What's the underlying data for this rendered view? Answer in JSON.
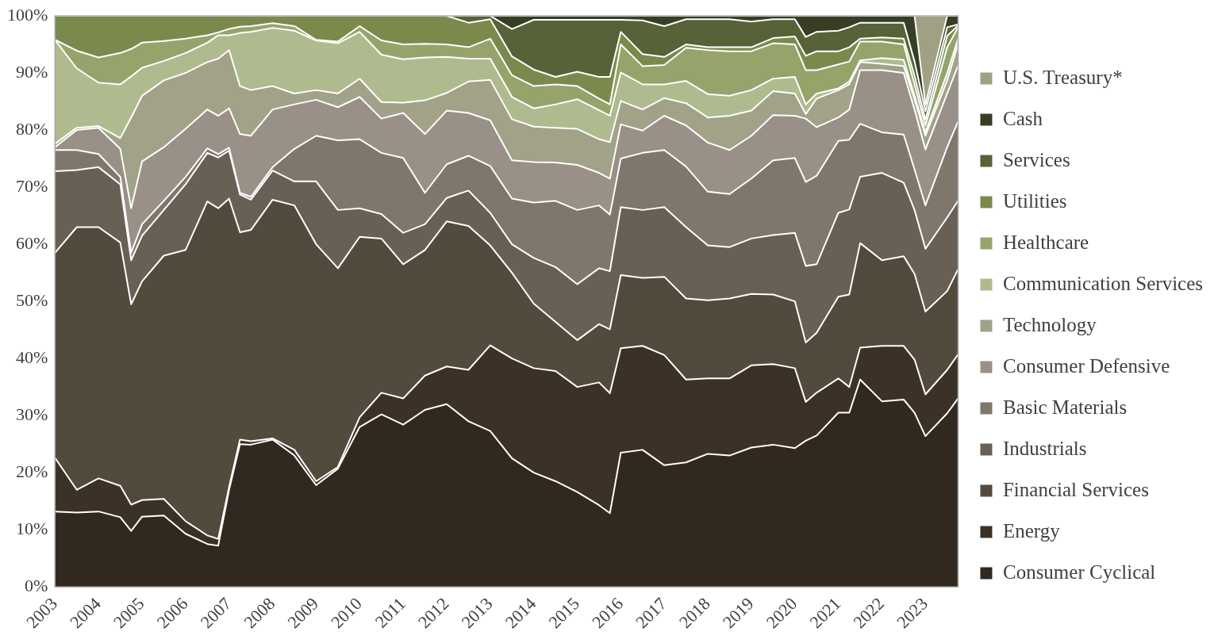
{
  "chart_data": {
    "type": "area",
    "stacked": true,
    "legend": "right",
    "grid": false,
    "x": [
      2003,
      2003.5,
      2004,
      2004.5,
      2004.75,
      2005,
      2005.5,
      2006,
      2006.5,
      2006.75,
      2007,
      2007.25,
      2007.5,
      2008,
      2008.5,
      2009,
      2009.5,
      2010,
      2010.5,
      2011,
      2011.5,
      2012,
      2012.5,
      2013,
      2013.5,
      2014,
      2014.5,
      2015,
      2015.5,
      2015.75,
      2016,
      2016.5,
      2017,
      2017.5,
      2018,
      2018.5,
      2019,
      2019.5,
      2020,
      2020.25,
      2020.5,
      2021,
      2021.25,
      2021.5,
      2022,
      2022.5,
      2022.75,
      2023,
      2023.5,
      2023.75
    ],
    "xlim": [
      2003,
      2023.75
    ],
    "xticks": [
      2003,
      2004,
      2005,
      2006,
      2007,
      2008,
      2009,
      2010,
      2011,
      2012,
      2013,
      2014,
      2015,
      2016,
      2017,
      2018,
      2019,
      2020,
      2021,
      2022,
      2023
    ],
    "ylim": [
      0,
      100
    ],
    "yticks": [
      {
        "value": 0,
        "label": "0%"
      },
      {
        "value": 10,
        "label": "10%"
      },
      {
        "value": 20,
        "label": "20%"
      },
      {
        "value": 30,
        "label": "30%"
      },
      {
        "value": 40,
        "label": "40%"
      },
      {
        "value": 50,
        "label": "50%"
      },
      {
        "value": 60,
        "label": "60%"
      },
      {
        "value": 70,
        "label": "70%"
      },
      {
        "value": 80,
        "label": "80%"
      },
      {
        "value": 90,
        "label": "90%"
      },
      {
        "value": 100,
        "label": "100%"
      }
    ],
    "series": [
      {
        "name": "Consumer Cyclical",
        "color": "#312820",
        "values": [
          13.2,
          13,
          13.2,
          12.2,
          9.8,
          12.3,
          12.5,
          9.3,
          7.5,
          7.2,
          17,
          25,
          24.9,
          25.8,
          23,
          17.8,
          20.7,
          28,
          30.2,
          28.4,
          31,
          32,
          29,
          27.3,
          22.5,
          20,
          18.5,
          16.6,
          14.3,
          12.9,
          23.5,
          24,
          21.3,
          21.8,
          23.3,
          23,
          24.4,
          24.9,
          24.3,
          25.6,
          26.5,
          30.5,
          30.5,
          36.3,
          32.5,
          32.8,
          30.5,
          26.4,
          30.4,
          33
        ]
      },
      {
        "name": "Energy",
        "color": "#3c3127",
        "values": [
          9.4,
          4,
          5.8,
          5.5,
          4.6,
          2.9,
          2.9,
          2.2,
          1.5,
          1.2,
          0.5,
          0.8,
          0.6,
          0.2,
          1,
          0.7,
          0.3,
          1.7,
          3.8,
          4.6,
          6,
          6.6,
          9,
          15,
          17.5,
          18.3,
          19.3,
          18.4,
          21.5,
          21,
          18.3,
          18.2,
          19.3,
          14.5,
          13.2,
          13.5,
          14.4,
          14.1,
          14,
          6.8,
          7.5,
          6,
          4.5,
          5.6,
          9.7,
          9.4,
          9.3,
          7.3,
          7.6,
          7.7
        ]
      },
      {
        "name": "Financial Services",
        "color": "#524a3c",
        "values": [
          35.9,
          46,
          44,
          42.6,
          35.1,
          38.3,
          42.6,
          47.5,
          58.5,
          57.9,
          50.5,
          36.3,
          37,
          41.8,
          42.8,
          41.5,
          34.8,
          31.6,
          27,
          23.5,
          22,
          25.4,
          25.2,
          17.5,
          15,
          11.3,
          8.6,
          8.2,
          10.2,
          11.2,
          12.8,
          11.9,
          13.7,
          14.2,
          13.7,
          14,
          12.5,
          12.2,
          11.7,
          10.4,
          10.5,
          14.3,
          16.2,
          18.3,
          15,
          15.7,
          15,
          14.5,
          13.8,
          14.9
        ]
      },
      {
        "name": "Industrials",
        "color": "#686055",
        "values": [
          14.3,
          10,
          10.5,
          10.2,
          7.7,
          8,
          8,
          11.5,
          8.5,
          8.9,
          8.4,
          6.6,
          5.3,
          5.1,
          4.2,
          11,
          10.2,
          5,
          4.3,
          5.5,
          4.5,
          4.1,
          6.2,
          5.7,
          5,
          8,
          9.6,
          9.8,
          9.8,
          10.2,
          11.9,
          11.9,
          12.2,
          12.5,
          9.6,
          9,
          9.7,
          10.4,
          12,
          13.4,
          12,
          14.7,
          14.9,
          11.6,
          15.3,
          12.9,
          11.2,
          11,
          12.9,
          12
        ]
      },
      {
        "name": "Basic Materials",
        "color": "#7f776c",
        "values": [
          3.7,
          3.5,
          2.3,
          1.3,
          1.3,
          2,
          1.6,
          1.3,
          0.8,
          0.6,
          0.5,
          0.3,
          0.5,
          0.6,
          5.7,
          8,
          12.2,
          12.1,
          10.7,
          13.1,
          5.5,
          5.9,
          6.1,
          8.2,
          8,
          9.7,
          11.6,
          13,
          11,
          9.9,
          8.5,
          10,
          10,
          10.6,
          9.4,
          9.3,
          10.5,
          13.1,
          13.1,
          14.7,
          15.5,
          12.6,
          12.2,
          9.3,
          7.1,
          8.4,
          7.1,
          7.6,
          12.3,
          13.9
        ]
      },
      {
        "name": "Consumer Defensive",
        "color": "#999087",
        "values": [
          0.5,
          3.5,
          4.6,
          4.9,
          7.8,
          11,
          9.4,
          8.4,
          6.8,
          6.7,
          6.9,
          10.3,
          10.7,
          10.1,
          7.8,
          6.3,
          5.8,
          7.4,
          6,
          7.9,
          10.3,
          9.4,
          7.5,
          8,
          6.7,
          7.1,
          6.7,
          7.9,
          5.7,
          6.3,
          6,
          3.9,
          6,
          7.2,
          8.6,
          7.7,
          7.5,
          7.9,
          7.4,
          11.1,
          8.5,
          4.1,
          5.3,
          9.4,
          10.9,
          10.8,
          10.5,
          9.8,
          9.4,
          9.8
        ]
      },
      {
        "name": "Technology",
        "color": "#a1a288",
        "values": [
          0.6,
          0.4,
          0.3,
          1.9,
          15.9,
          11.5,
          11.7,
          9.8,
          8.3,
          10,
          10.2,
          8.4,
          8,
          4.1,
          1.9,
          1.7,
          2.4,
          3.2,
          2.9,
          1.8,
          5.9,
          3.1,
          5.5,
          7.1,
          7.2,
          6.2,
          6.1,
          6.3,
          5.9,
          6.4,
          4.1,
          3.7,
          3.1,
          3.9,
          4.4,
          6,
          4.4,
          4.2,
          3.9,
          0.8,
          5,
          4.8,
          4.4,
          1.4,
          1.1,
          1.2,
          1.8,
          2.4,
          2.3,
          3.7
        ]
      },
      {
        "name": "Communication Services",
        "color": "#afbb8f",
        "values": [
          18.2,
          10.4,
          7.6,
          9.4,
          7.2,
          4.9,
          3.4,
          3.5,
          3.4,
          4.1,
          2.6,
          9.3,
          10.2,
          10.2,
          11,
          8.7,
          8.8,
          8.2,
          8.3,
          7.6,
          7.5,
          6.3,
          4,
          3.7,
          3.9,
          3.2,
          4.1,
          5.2,
          5.1,
          4.6,
          5,
          4.4,
          2.4,
          3.9,
          4.1,
          3.5,
          3.6,
          2.2,
          2.9,
          1.7,
          0.9,
          0.3,
          0.5,
          0.3,
          1,
          1.1,
          0.6,
          0.6,
          1.3,
          1
        ]
      },
      {
        "name": "Healthcare",
        "color": "#95a46b",
        "values": [
          0,
          3.1,
          4.4,
          5.5,
          4.8,
          4.4,
          3.5,
          2.5,
          1.3,
          0.5,
          1.1,
          1.1,
          1,
          0.8,
          0.8,
          0.1,
          0.3,
          1,
          2.5,
          2.6,
          2.4,
          2.2,
          2,
          3.5,
          3.8,
          3.9,
          3.5,
          2.3,
          2,
          2,
          4.9,
          3.2,
          3.4,
          5.8,
          7.7,
          7.8,
          6.8,
          6.2,
          5.7,
          6,
          4.1,
          4.2,
          3.5,
          3.3,
          2.9,
          2.7,
          2,
          1.2,
          4.5,
          2
        ]
      },
      {
        "name": "Utilities",
        "color": "#7a8a4d",
        "values": [
          4.2,
          6.1,
          7.3,
          6.5,
          5.8,
          4.7,
          4.4,
          4,
          3.4,
          2.9,
          2.3,
          1.9,
          1.8,
          1.3,
          1.8,
          4.2,
          4.5,
          1.8,
          4.3,
          5,
          4.9,
          5,
          4.3,
          3.4,
          3.3,
          2.9,
          1.3,
          2.5,
          3.8,
          4.8,
          2.2,
          2.1,
          1.4,
          0.6,
          0.5,
          0.7,
          0.7,
          0.9,
          1.4,
          2.5,
          3.3,
          2.3,
          2.5,
          0.5,
          0.7,
          1,
          1.5,
          1,
          2,
          0.3
        ]
      },
      {
        "name": "Services",
        "color": "#566237",
        "values": [
          0,
          0,
          0,
          0,
          0,
          0,
          0,
          0,
          0,
          0,
          0,
          0,
          0,
          0,
          0,
          0,
          0,
          0,
          0,
          0,
          0,
          0,
          1.2,
          0.6,
          4.8,
          8.7,
          10,
          9.1,
          10,
          10,
          2.1,
          5.9,
          5.4,
          4.4,
          4.9,
          4.9,
          4.5,
          3.3,
          3,
          3.3,
          3.4,
          3.6,
          3.5,
          2.8,
          2.6,
          2.8,
          2.5,
          1.5,
          1.5,
          0.2
        ]
      },
      {
        "name": "Cash",
        "color": "#373e25",
        "values": [
          0,
          0,
          0,
          0,
          0,
          0,
          0,
          0,
          0,
          0,
          0,
          0,
          0,
          0,
          0,
          0,
          0,
          0,
          0,
          0,
          0,
          0,
          0,
          0,
          2.3,
          0.7,
          0.7,
          0.7,
          0.7,
          0.7,
          0.7,
          0.8,
          1.8,
          0.6,
          0.6,
          0.6,
          1,
          0.6,
          0.6,
          3.7,
          2.8,
          2.6,
          2,
          1.2,
          1.2,
          1.2,
          8,
          1.1,
          2,
          1.5
        ]
      },
      {
        "name": "U.S. Treasury*",
        "color": "#a0a085",
        "values": [
          0,
          0,
          0,
          0,
          0,
          0,
          0,
          0,
          0,
          0,
          0,
          0,
          0,
          0,
          0,
          0,
          0,
          0,
          0,
          0,
          0,
          0,
          0,
          0,
          0,
          0,
          0,
          0,
          0,
          0,
          0,
          0,
          0,
          0,
          0,
          0,
          0,
          0,
          0,
          0,
          0,
          0,
          0,
          0,
          0,
          0,
          0,
          15.6,
          0,
          0
        ]
      }
    ]
  }
}
